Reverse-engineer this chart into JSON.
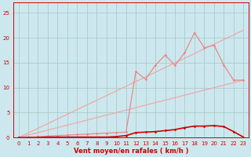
{
  "xlabel": "Vent moyen/en rafales ( km/h )",
  "background_color": "#cce8ee",
  "grid_color": "#aacccc",
  "x_ticks": [
    0,
    1,
    2,
    3,
    4,
    5,
    6,
    7,
    8,
    9,
    10,
    11,
    12,
    13,
    14,
    15,
    16,
    17,
    18,
    19,
    20,
    21,
    22,
    23
  ],
  "y_ticks": [
    0,
    5,
    10,
    15,
    20,
    25
  ],
  "xlim": [
    -0.5,
    23.5
  ],
  "ylim": [
    0,
    27
  ],
  "line_diag_low": {
    "x": [
      0,
      23
    ],
    "y": [
      0,
      11.5
    ],
    "color": "#f0a8a8",
    "lw": 0.9
  },
  "line_diag_high": {
    "x": [
      0,
      23
    ],
    "y": [
      0,
      21.5
    ],
    "color": "#f0a8a8",
    "lw": 0.9
  },
  "line_jagged": {
    "x": [
      0,
      1,
      2,
      3,
      4,
      5,
      6,
      7,
      8,
      9,
      10,
      11,
      12,
      13,
      14,
      15,
      16,
      17,
      18,
      19,
      20,
      21,
      22,
      23
    ],
    "y": [
      0,
      0.1,
      0.2,
      0.3,
      0.4,
      0.5,
      0.6,
      0.7,
      0.8,
      0.9,
      1.0,
      1.1,
      13.2,
      11.7,
      14.5,
      16.5,
      14.5,
      17.0,
      21.0,
      18.0,
      18.5,
      14.5,
      11.5,
      11.5
    ],
    "color": "#e88888",
    "lw": 0.9,
    "marker": "D",
    "ms": 1.8
  },
  "line_bottom": {
    "x": [
      0,
      1,
      2,
      3,
      4,
      5,
      6,
      7,
      8,
      9,
      10,
      11,
      12,
      13,
      14,
      15,
      16,
      17,
      18,
      19,
      20,
      21,
      22,
      23
    ],
    "y": [
      0,
      0.0,
      0.0,
      0.1,
      0.1,
      0.1,
      0.1,
      0.1,
      0.1,
      0.1,
      0.2,
      0.4,
      1.0,
      1.1,
      1.2,
      1.4,
      1.6,
      2.0,
      2.3,
      2.3,
      2.4,
      2.2,
      1.2,
      0.1
    ],
    "color": "#cc0000",
    "lw": 1.2,
    "marker": "D",
    "ms": 1.8
  },
  "tick_color": "#cc0000",
  "spine_color": "#cc0000",
  "xlabel_color": "#cc0000",
  "xlabel_fontsize": 6.0,
  "tick_fontsize": 5.0
}
